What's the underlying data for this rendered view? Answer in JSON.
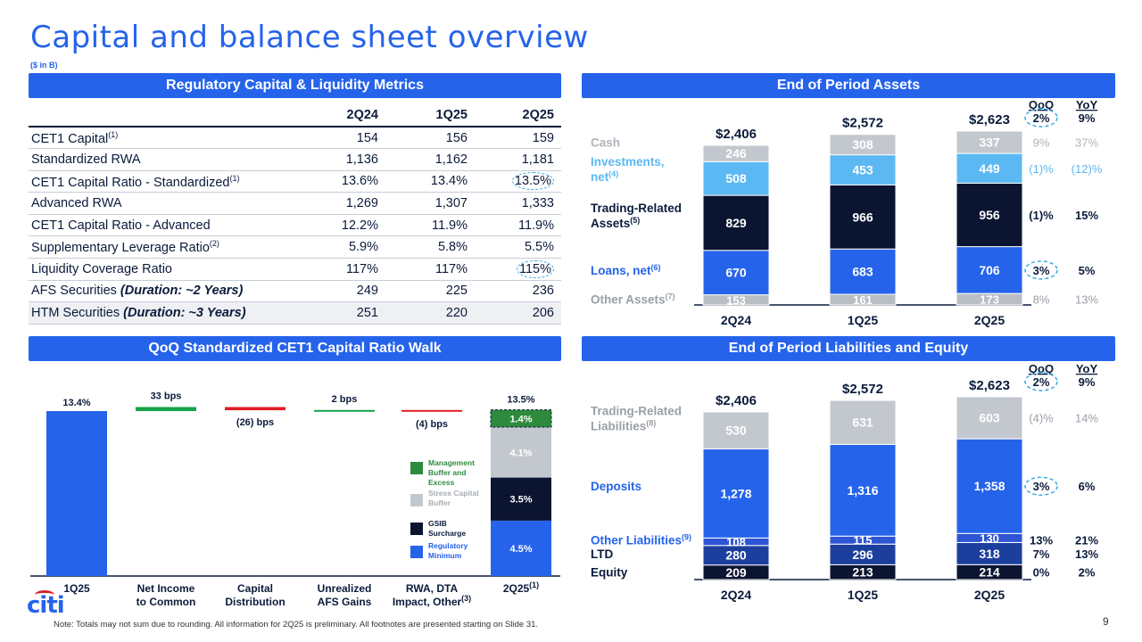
{
  "page": {
    "title": "Capital and balance sheet overview",
    "units": "($ in B)",
    "footnote": "Note:  Totals may not sum due to rounding. All information for 2Q25 is preliminary. All footnotes are presented starting on Slide 31.",
    "page_number": "9",
    "logo": "citi"
  },
  "sections": {
    "metrics": "Regulatory Capital & Liquidity Metrics",
    "assets": "End of Period Assets",
    "walk": "QoQ Standardized CET1 Capital Ratio Walk",
    "liabilities": "End of Period Liabilities and Equity"
  },
  "metrics_table": {
    "columns": [
      "2Q24",
      "1Q25",
      "2Q25"
    ],
    "rows": [
      {
        "label": "CET1 Capital",
        "sup": "(1)",
        "values": [
          "154",
          "156",
          "159"
        ],
        "circle_last": false
      },
      {
        "label": "Standardized RWA",
        "sup": "",
        "values": [
          "1,136",
          "1,162",
          "1,181"
        ],
        "circle_last": false
      },
      {
        "label": "CET1 Capital Ratio - Standardized",
        "sup": "(1)",
        "values": [
          "13.6%",
          "13.4%",
          "13.5%"
        ],
        "circle_last": true
      },
      {
        "label": "Advanced RWA",
        "sup": "",
        "values": [
          "1,269",
          "1,307",
          "1,333"
        ],
        "circle_last": false
      },
      {
        "label": "CET1 Capital Ratio - Advanced",
        "sup": "",
        "values": [
          "12.2%",
          "11.9%",
          "11.9%"
        ],
        "circle_last": false
      },
      {
        "label": "Supplementary Leverage Ratio",
        "sup": "(2)",
        "values": [
          "5.9%",
          "5.8%",
          "5.5%"
        ],
        "circle_last": false
      },
      {
        "label": "Liquidity Coverage Ratio",
        "sup": "",
        "values": [
          "117%",
          "117%",
          "115%"
        ],
        "circle_last": true
      },
      {
        "label": "AFS Securities",
        "italic": "(Duration: ~2 Years)",
        "sup": "",
        "values": [
          "249",
          "225",
          "236"
        ],
        "circle_last": false
      },
      {
        "label": "HTM Securities",
        "italic": "(Duration: ~3 Years)",
        "sup": "",
        "values": [
          "251",
          "220",
          "206"
        ],
        "circle_last": false
      }
    ]
  },
  "chart_data": [
    {
      "id": "assets",
      "type": "bar",
      "stacked": true,
      "categories": [
        "2Q24",
        "1Q25",
        "2Q25"
      ],
      "totals": [
        "$2,406",
        "$2,572",
        "$2,623"
      ],
      "header_labels": [
        "QoQ",
        "YoY"
      ],
      "total_changes": {
        "qoq": "2%",
        "yoy": "9%"
      },
      "series": [
        {
          "name": "Other Assets",
          "sup": "(7)",
          "values": [
            153,
            161,
            173
          ],
          "color": "#b9bec5",
          "label_color": "#9aa0a8",
          "text_color": "#ffffff",
          "qoq": "8%",
          "yoy": "13%"
        },
        {
          "name": "Loans, net",
          "sup": "(6)",
          "values": [
            670,
            683,
            706
          ],
          "color": "#2563eb",
          "label_color": "#2563eb",
          "text_color": "#ffffff",
          "qoq": "3%",
          "yoy": "5%",
          "circle_qoq": true
        },
        {
          "name": "Trading-Related Assets",
          "sup": "(5)",
          "values": [
            829,
            966,
            956
          ],
          "color": "#0b1430",
          "label_color": "#0b1b3b",
          "text_color": "#ffffff",
          "qoq": "(1)%",
          "yoy": "15%"
        },
        {
          "name": "Investments, net",
          "sup": "(4)",
          "values": [
            508,
            453,
            449
          ],
          "color": "#5cb8f2",
          "label_color": "#5cb8f2",
          "text_color": "#ffffff",
          "qoq": "(1)%",
          "yoy": "(12)%"
        },
        {
          "name": "Cash",
          "sup": "",
          "values": [
            246,
            308,
            337
          ],
          "color": "#c3c8ce",
          "label_color": "#b0b5bb",
          "text_color": "#ffffff",
          "qoq": "9%",
          "yoy": "37%"
        }
      ]
    },
    {
      "id": "liabilities",
      "type": "bar",
      "stacked": true,
      "categories": [
        "2Q24",
        "1Q25",
        "2Q25"
      ],
      "totals": [
        "$2,406",
        "$2,572",
        "$2,623"
      ],
      "header_labels": [
        "QoQ",
        "YoY"
      ],
      "total_changes": {
        "qoq": "2%",
        "yoy": "9%"
      },
      "series": [
        {
          "name": "Equity",
          "sup": "",
          "values": [
            209,
            213,
            214
          ],
          "color": "#0b1430",
          "label_color": "#0b1b3b",
          "text_color": "#ffffff",
          "qoq": "0%",
          "yoy": "2%"
        },
        {
          "name": "LTD",
          "sup": "",
          "values": [
            280,
            296,
            318
          ],
          "color": "#1c3f9e",
          "label_color": "#0b1b3b",
          "text_color": "#ffffff",
          "qoq": "7%",
          "yoy": "13%"
        },
        {
          "name": "Other Liabilities",
          "sup": "(9)",
          "values": [
            108,
            115,
            130
          ],
          "color": "#2f55d4",
          "label_color": "#2563eb",
          "text_color": "#ffffff",
          "qoq": "13%",
          "yoy": "21%"
        },
        {
          "name": "Deposits",
          "sup": "",
          "values": [
            1278,
            1316,
            1358
          ],
          "color": "#2563eb",
          "label_color": "#2563eb",
          "text_color": "#ffffff",
          "qoq": "3%",
          "yoy": "6%",
          "circle_qoq": true
        },
        {
          "name": "Trading-Related Liabilities",
          "sup": "(8)",
          "values": [
            530,
            631,
            603
          ],
          "color": "#c3c8ce",
          "label_color": "#9aa0a8",
          "text_color": "#ffffff",
          "qoq": "(4)%",
          "yoy": "14%"
        }
      ]
    },
    {
      "id": "walk",
      "type": "bar",
      "subtype": "waterfall",
      "ylim": [
        0,
        14.2
      ],
      "categories": [
        "1Q25",
        "Net Income to Common",
        "Capital Distribution",
        "Unrealized AFS Gains",
        "RWA, DTA Impact, Other",
        "2Q25"
      ],
      "category_sups": [
        "",
        "",
        "",
        "",
        "(3)",
        "(1)"
      ],
      "start": {
        "value": 13.4,
        "label": "13.4%"
      },
      "steps": [
        {
          "bps": 33,
          "label": "33 bps",
          "color": "#16a34a"
        },
        {
          "bps": -26,
          "label": "(26) bps",
          "color": "#e11d24"
        },
        {
          "bps": 2,
          "label": "2 bps",
          "color": "#16a34a"
        },
        {
          "bps": -4,
          "label": "(4) bps",
          "color": "#e11d24"
        }
      ],
      "end": {
        "label": "13.5%",
        "components": [
          {
            "name": "Regulatory Minimum",
            "value": 4.5,
            "label": "4.5%",
            "color": "#2563eb",
            "text_color": "#ffffff"
          },
          {
            "name": "GSIB Surcharge",
            "value": 3.5,
            "label": "3.5%",
            "color": "#0b1430",
            "text_color": "#ffffff"
          },
          {
            "name": "Stress Capital Buffer",
            "value": 4.1,
            "label": "4.1%",
            "color": "#c3c8ce",
            "text_color": "#ffffff"
          },
          {
            "name": "Management Buffer and Excess",
            "value": 1.4,
            "label": "1.4%",
            "color": "#2e8b3e",
            "text_color": "#ffffff",
            "dashed": true
          }
        ]
      },
      "legend": [
        {
          "name": "Management Buffer and Excess",
          "color": "#2e8b3e",
          "text_color": "#2e8b3e"
        },
        {
          "name": "Stress Capital Buffer",
          "color": "#c3c8ce",
          "text_color": "#a7adb4"
        },
        {
          "name": "GSIB Surcharge",
          "color": "#0b1430",
          "text_color": "#0b1b3b"
        },
        {
          "name": "Regulatory Minimum",
          "color": "#2563eb",
          "text_color": "#2563eb"
        }
      ]
    }
  ]
}
